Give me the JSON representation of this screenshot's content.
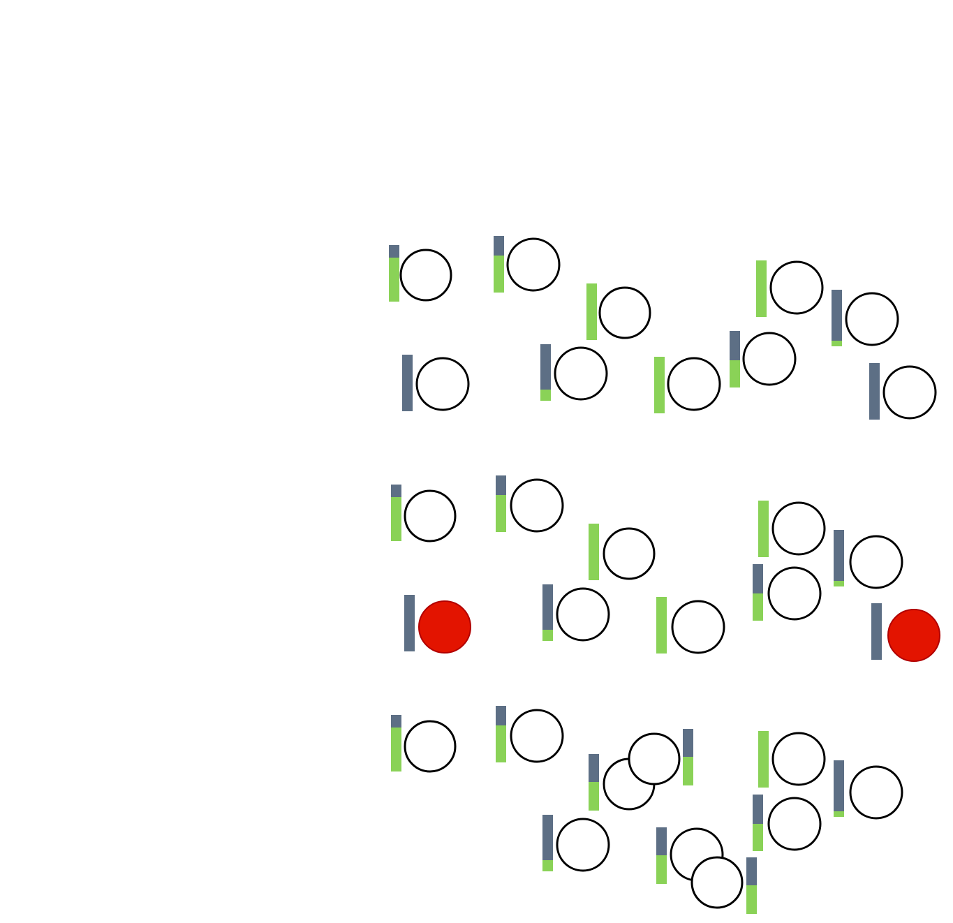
{
  "colors": {
    "background": "#ffffff",
    "bar_empty": "#5d6f85",
    "bar_full": "#8ad257",
    "ring_stroke": "#000000",
    "ring_fill": "#ffffff",
    "active_fill": "#e31400",
    "active_stroke": "#b10000"
  },
  "units": [
    {
      "fill": 0.78,
      "state": "idle"
    },
    {
      "fill": 0.65,
      "state": "idle"
    },
    {
      "fill": 1.0,
      "state": "idle"
    },
    {
      "fill": 1.0,
      "state": "idle"
    },
    {
      "fill": 0.1,
      "state": "idle"
    },
    {
      "fill": 0.0,
      "state": "idle"
    },
    {
      "fill": 0.2,
      "state": "idle"
    },
    {
      "fill": 1.0,
      "state": "idle"
    },
    {
      "fill": 0.48,
      "state": "idle"
    },
    {
      "fill": 0.0,
      "state": "idle"
    },
    {
      "fill": 0.78,
      "state": "idle"
    },
    {
      "fill": 0.65,
      "state": "idle"
    },
    {
      "fill": 1.0,
      "state": "idle"
    },
    {
      "fill": 1.0,
      "state": "idle"
    },
    {
      "fill": 0.1,
      "state": "idle"
    },
    {
      "fill": 0.0,
      "state": "active"
    },
    {
      "fill": 0.2,
      "state": "idle"
    },
    {
      "fill": 1.0,
      "state": "idle"
    },
    {
      "fill": 0.48,
      "state": "idle"
    },
    {
      "fill": 0.0,
      "state": "active"
    },
    {
      "fill": 0.78,
      "state": "idle"
    },
    {
      "fill": 0.65,
      "state": "idle"
    },
    {
      "fill": 0.5,
      "state": "idle"
    },
    {
      "fill": 0.5,
      "state": "idle"
    },
    {
      "fill": 1.0,
      "state": "idle"
    },
    {
      "fill": 0.1,
      "state": "idle"
    },
    {
      "fill": 0.2,
      "state": "idle"
    },
    {
      "fill": 0.48,
      "state": "idle"
    },
    {
      "fill": 0.5,
      "state": "idle"
    },
    {
      "fill": 0.5,
      "state": "idle"
    }
  ]
}
